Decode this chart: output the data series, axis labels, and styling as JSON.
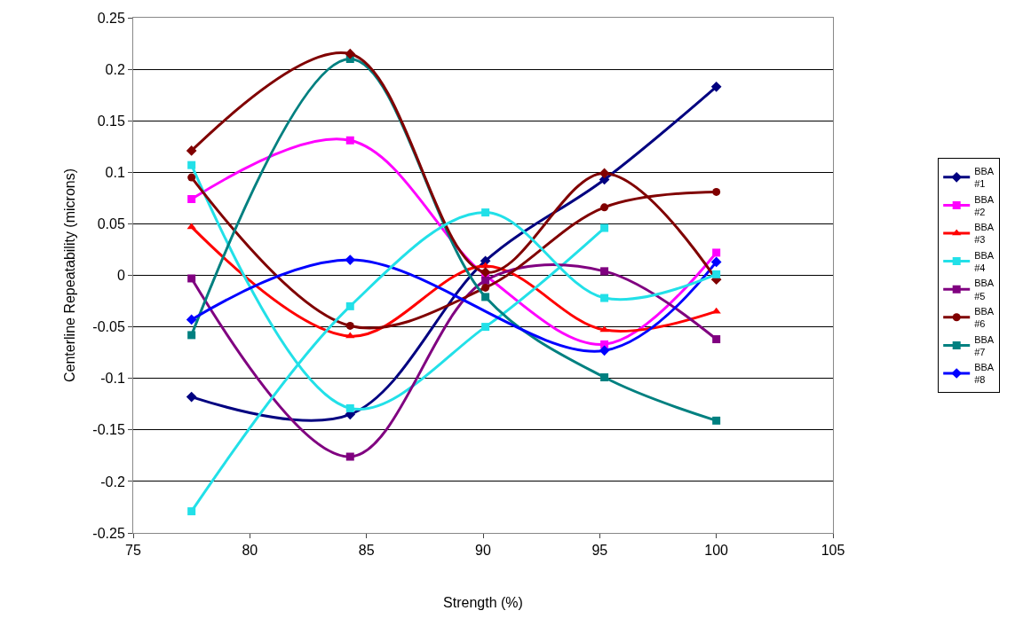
{
  "chart_data": {
    "type": "line",
    "xlabel": "Strength (%)",
    "ylabel": "Centerline Repeatability (microns)",
    "x": [
      77.5,
      84.3,
      90.1,
      95.2,
      100
    ],
    "series": [
      {
        "name": "BBA #1",
        "color": "#000080",
        "marker": "diamond",
        "values": [
          -0.118,
          -0.135,
          0.014,
          0.093,
          0.183
        ]
      },
      {
        "name": "BBA #2",
        "color": "#ff00ff",
        "marker": "square",
        "values": [
          0.074,
          0.131,
          0.0,
          -0.067,
          0.022
        ]
      },
      {
        "name": "BBA #3",
        "color": "#ff0000",
        "marker": "triangle",
        "values": [
          0.047,
          -0.059,
          0.009,
          -0.053,
          -0.035
        ]
      },
      {
        "name": "BBA #4",
        "color": "#22e0e8",
        "marker": "square",
        "values": [
          0.107,
          -0.129,
          -0.05,
          0.046,
          null
        ]
      },
      {
        "name": "BBA #5",
        "color": "#800080",
        "marker": "square",
        "values": [
          -0.003,
          -0.176,
          -0.005,
          0.004,
          -0.062
        ]
      },
      {
        "name": "BBA #6",
        "color": "#800000",
        "marker": "circle",
        "values": [
          0.095,
          -0.049,
          -0.012,
          0.066,
          0.081
        ]
      },
      {
        "name": "BBA #7",
        "color": "#008080",
        "marker": "square",
        "values": [
          -0.058,
          0.21,
          -0.021,
          -0.099,
          -0.141
        ]
      },
      {
        "name": "BBA #8",
        "color": "#0000ff",
        "marker": "diamond",
        "values": [
          -0.043,
          0.015,
          null,
          -0.073,
          0.013
        ]
      },
      {
        "color": "#800000",
        "marker": "diamond",
        "values": [
          0.121,
          0.215,
          0.003,
          0.099,
          -0.004
        ]
      },
      {
        "color": "#22e0e8",
        "marker": "square",
        "values": [
          -0.229,
          -0.03,
          0.061,
          -0.022,
          0.001
        ]
      }
    ],
    "xlim": [
      75,
      105
    ],
    "xticks": [
      75,
      80,
      85,
      90,
      95,
      100,
      105
    ],
    "ylim": [
      -0.25,
      0.25
    ],
    "yticks": [
      -0.25,
      -0.2,
      -0.15,
      -0.1,
      -0.05,
      0,
      0.05,
      0.1,
      0.15,
      0.2,
      0.25
    ],
    "grid": "y",
    "legend": "right",
    "line_style": "solid"
  }
}
